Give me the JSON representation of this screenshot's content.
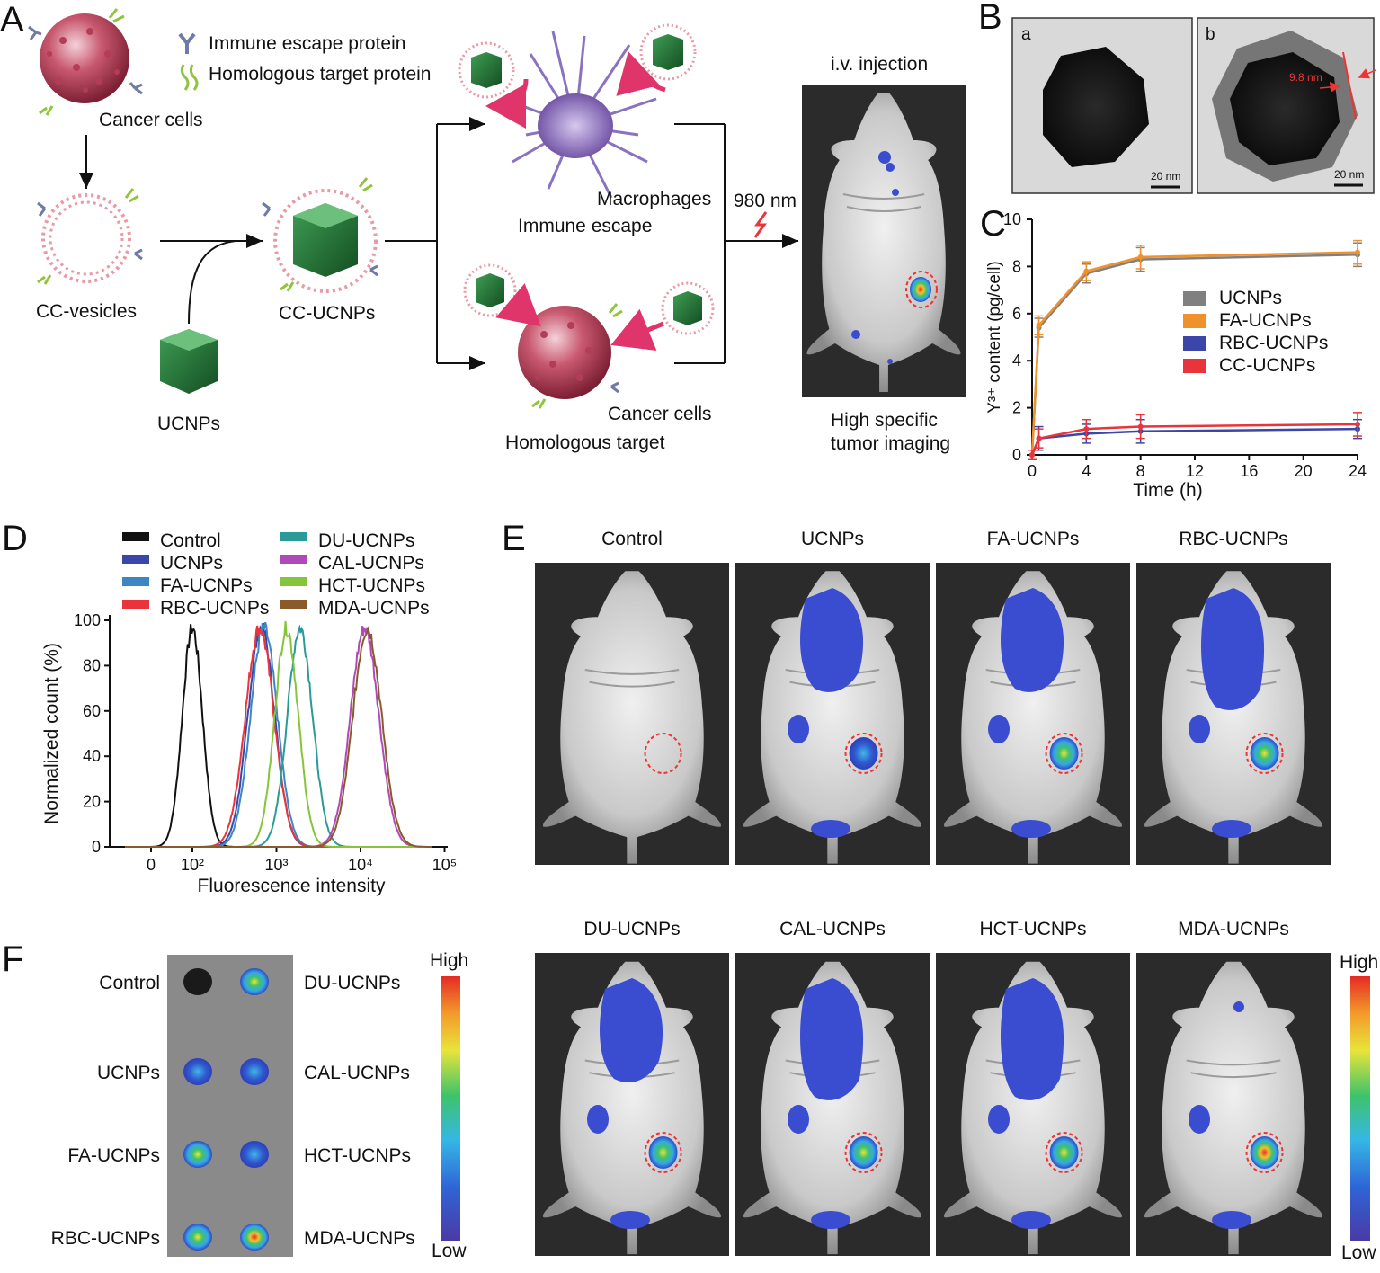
{
  "panels": {
    "A": "A",
    "B": "B",
    "C": "C",
    "D": "D",
    "E": "E",
    "F": "F"
  },
  "schematic": {
    "immune_escape_protein": "Immune escape protein",
    "homologous_target_protein": "Homologous target protein",
    "cancer_cells": "Cancer cells",
    "cc_vesicles": "CC-vesicles",
    "cc_ucnps": "CC-UCNPs",
    "ucnps": "UCNPs",
    "macrophages": "Macrophages",
    "immune_escape": "Immune escape",
    "cancer_cells_2": "Cancer cells",
    "homologous_target": "Homologous target",
    "laser": "980 nm",
    "injection": "i.v. injection",
    "imaging_line1": "High specific",
    "imaging_line2": "tumor imaging"
  },
  "tem": {
    "a_label": "a",
    "b_label": "b",
    "scale_a": "20 nm",
    "scale_b": "20 nm",
    "shell": "9.8 nm"
  },
  "chart_data": [
    {
      "id": "C",
      "type": "line",
      "xlabel": "Time (h)",
      "ylabel": "Y³⁺ content (pg/cell)",
      "xlim": [
        0,
        24
      ],
      "ylim": [
        0,
        10
      ],
      "xticks": [
        0,
        4,
        8,
        12,
        16,
        20,
        24
      ],
      "yticks": [
        0,
        2,
        4,
        6,
        8,
        10
      ],
      "x": [
        0,
        0.5,
        4,
        8,
        24
      ],
      "series": [
        {
          "name": "UCNPs",
          "color": "#808080",
          "values": [
            0,
            5.4,
            7.7,
            8.3,
            8.5
          ],
          "err": [
            0.2,
            0.4,
            0.4,
            0.5,
            0.5
          ]
        },
        {
          "name": "FA-UCNPs",
          "color": "#f0922b",
          "values": [
            0,
            5.5,
            7.8,
            8.4,
            8.6
          ],
          "err": [
            0.2,
            0.4,
            0.4,
            0.5,
            0.5
          ]
        },
        {
          "name": "RBC-UCNPs",
          "color": "#3b46a8",
          "values": [
            0,
            0.7,
            0.9,
            1.0,
            1.1
          ],
          "err": [
            0.2,
            0.5,
            0.4,
            0.5,
            0.4
          ]
        },
        {
          "name": "CC-UCNPs",
          "color": "#e8343a",
          "values": [
            0,
            0.7,
            1.1,
            1.2,
            1.3
          ],
          "err": [
            0.2,
            0.4,
            0.4,
            0.5,
            0.5
          ]
        }
      ],
      "legend": "right"
    },
    {
      "id": "D",
      "type": "line",
      "xlabel": "Fluorescence intensity",
      "ylabel": "Normalized count (%)",
      "ylim": [
        0,
        100
      ],
      "yticks": [
        0,
        20,
        40,
        60,
        80,
        100
      ],
      "xticks": [
        "0",
        "10²",
        "10³",
        "10⁴",
        "10⁵"
      ],
      "series": [
        {
          "name": "Control",
          "color": "#111111",
          "peak_log10": 2.0,
          "width": 0.12
        },
        {
          "name": "UCNPs",
          "color": "#3b46a8",
          "peak_log10": 2.82,
          "width": 0.16
        },
        {
          "name": "FA-UCNPs",
          "color": "#3d86c6",
          "peak_log10": 2.85,
          "width": 0.16
        },
        {
          "name": "RBC-UCNPs",
          "color": "#e8343a",
          "peak_log10": 2.8,
          "width": 0.17
        },
        {
          "name": "DU-UCNPs",
          "color": "#2a9a98",
          "peak_log10": 3.28,
          "width": 0.15
        },
        {
          "name": "CAL-UCNPs",
          "color": "#b04ab8",
          "peak_log10": 4.05,
          "width": 0.17
        },
        {
          "name": "HCT-UCNPs",
          "color": "#86c43c",
          "peak_log10": 3.12,
          "width": 0.14
        },
        {
          "name": "MDA-UCNPs",
          "color": "#8b5a2b",
          "peak_log10": 4.08,
          "width": 0.17
        }
      ],
      "legend": "top"
    }
  ],
  "panel_e": {
    "row1": [
      "Control",
      "UCNPs",
      "FA-UCNPs",
      "RBC-UCNPs"
    ],
    "row2": [
      "DU-UCNPs",
      "CAL-UCNPs",
      "HCT-UCNPs",
      "MDA-UCNPs"
    ],
    "high": "High",
    "low": "Low"
  },
  "panel_f": {
    "left": [
      "Control",
      "UCNPs",
      "FA-UCNPs",
      "RBC-UCNPs"
    ],
    "right": [
      "DU-UCNPs",
      "CAL-UCNPs",
      "HCT-UCNPs",
      "MDA-UCNPs"
    ],
    "high": "High",
    "low": "Low"
  }
}
